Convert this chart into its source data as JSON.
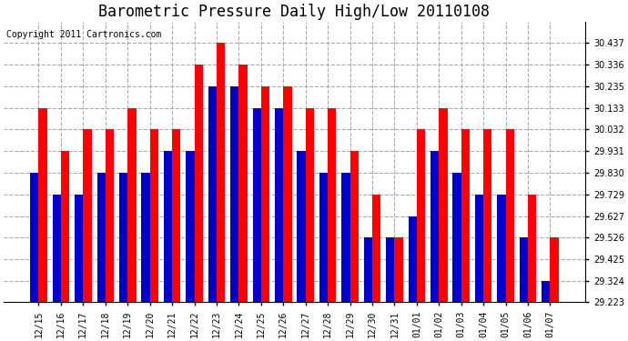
{
  "title": "Barometric Pressure Daily High/Low 20110108",
  "copyright": "Copyright 2011 Cartronics.com",
  "labels": [
    "12/15",
    "12/16",
    "12/17",
    "12/18",
    "12/19",
    "12/20",
    "12/21",
    "12/22",
    "12/23",
    "12/24",
    "12/25",
    "12/26",
    "12/27",
    "12/28",
    "12/29",
    "12/30",
    "12/31",
    "01/01",
    "01/02",
    "01/03",
    "01/04",
    "01/05",
    "01/06",
    "01/07"
  ],
  "highs": [
    30.133,
    29.931,
    30.032,
    30.032,
    30.133,
    30.032,
    30.032,
    30.336,
    30.437,
    30.336,
    30.235,
    30.235,
    30.133,
    30.133,
    29.931,
    29.729,
    29.526,
    30.032,
    30.133,
    30.032,
    30.032,
    30.032,
    29.729,
    29.526
  ],
  "lows": [
    29.83,
    29.729,
    29.729,
    29.83,
    29.83,
    29.83,
    29.931,
    29.931,
    30.235,
    30.235,
    30.133,
    30.133,
    29.931,
    29.83,
    29.83,
    29.526,
    29.526,
    29.627,
    29.931,
    29.83,
    29.729,
    29.729,
    29.526,
    29.324
  ],
  "high_color": "#ff0000",
  "low_color": "#0000cc",
  "background_color": "#ffffff",
  "plot_background": "#ffffff",
  "grid_color": "#aaaaaa",
  "ylim_min": 29.223,
  "ylim_max": 30.537,
  "yticks": [
    29.223,
    29.324,
    29.425,
    29.526,
    29.627,
    29.729,
    29.83,
    29.931,
    30.032,
    30.133,
    30.235,
    30.336,
    30.437
  ],
  "title_fontsize": 12,
  "copyright_fontsize": 7,
  "tick_fontsize": 7,
  "bar_width": 0.38
}
